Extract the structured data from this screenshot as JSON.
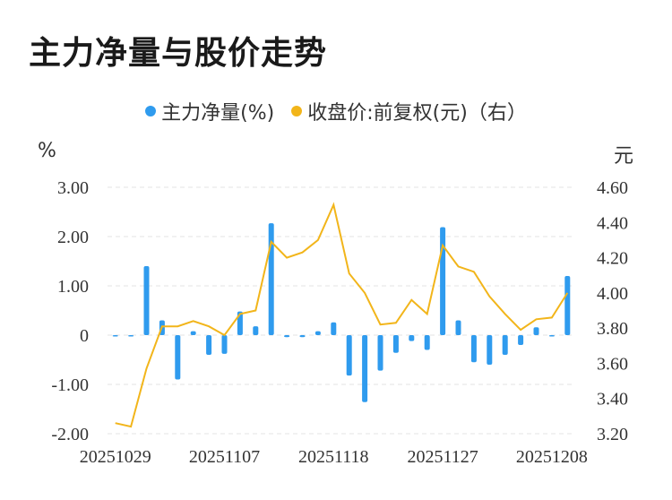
{
  "title": "主力净量与股价走势",
  "legend": {
    "series1": "主力净量(%)",
    "series2": "收盘价:前复权(元)（右）"
  },
  "left_unit": "%",
  "right_unit": "元",
  "colors": {
    "bar": "#2f9bee",
    "line": "#f2b51a",
    "grid": "#e3e3e3"
  },
  "chart_data": {
    "type": "bar+line",
    "x": [
      "20251029",
      "20251030",
      "20251031",
      "20251103",
      "20251104",
      "20251105",
      "20251106",
      "20251107",
      "20251110",
      "20251111",
      "20251112",
      "20251113",
      "20251114",
      "20251117",
      "20251118",
      "20251119",
      "20251120",
      "20251121",
      "20251124",
      "20251125",
      "20251126",
      "20251127",
      "20251128",
      "20251201",
      "20251202",
      "20251203",
      "20251204",
      "20251205",
      "20251208",
      "20251209"
    ],
    "x_tick_labels": [
      "20251029",
      "20251107",
      "20251118",
      "20251127",
      "20251208"
    ],
    "series": [
      {
        "name": "主力净量(%)",
        "axis": "left",
        "type": "bar",
        "values": [
          -0.02,
          -0.02,
          1.4,
          0.3,
          -0.9,
          0.08,
          -0.4,
          -0.38,
          0.48,
          0.18,
          2.27,
          -0.04,
          -0.04,
          0.08,
          0.26,
          -0.82,
          -1.36,
          -0.72,
          -0.36,
          -0.12,
          -0.3,
          2.19,
          0.3,
          -0.55,
          -0.6,
          -0.4,
          -0.2,
          0.16,
          -0.02,
          1.2
        ]
      },
      {
        "name": "收盘价:前复权(元)（右）",
        "axis": "right",
        "type": "line",
        "values": [
          3.26,
          3.24,
          3.57,
          3.81,
          3.81,
          3.84,
          3.81,
          3.76,
          3.88,
          3.9,
          4.29,
          4.2,
          4.23,
          4.3,
          4.5,
          4.11,
          4.0,
          3.82,
          3.83,
          3.96,
          3.88,
          4.27,
          4.15,
          4.12,
          3.98,
          3.88,
          3.79,
          3.85,
          3.86,
          4.0
        ]
      }
    ],
    "y_left": {
      "ticks": [
        "3.00",
        "2.00",
        "1.00",
        "0",
        "-1.00",
        "-2.00"
      ],
      "range": [
        -2.0,
        3.0
      ]
    },
    "y_right": {
      "ticks": [
        "4.60",
        "4.40",
        "4.20",
        "4.00",
        "3.80",
        "3.60",
        "3.40",
        "3.20"
      ],
      "range": [
        3.2,
        4.6
      ]
    },
    "grid": true,
    "legend_position": "top"
  }
}
